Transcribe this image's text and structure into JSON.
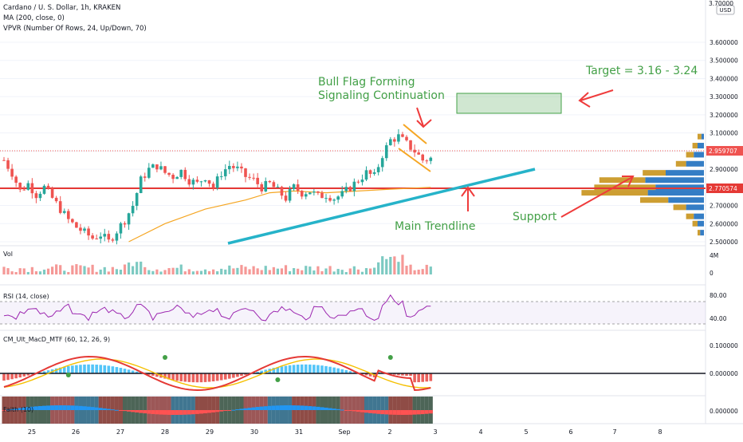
{
  "header": {
    "symbol_line": "Cardano / U. S. Dollar, 1h, KRAKEN",
    "ma_line": "MA (200, close, 0)",
    "vpvr_line": "VPVR (Number Of Rows, 24, Up/Down, 70)"
  },
  "annotations": {
    "bull_flag_line1": "Bull Flag Forming",
    "bull_flag_line2": "Signaling Continuation",
    "target": "Target = 3.16 - 3.24",
    "support": "Support",
    "main_trendline": "Main Trendline"
  },
  "price_axis": {
    "currency": "USD",
    "ticks": [
      "3.600000",
      "3.500000",
      "3.400000",
      "3.300000",
      "3.200000",
      "3.100000",
      "3.000000",
      "2.900000",
      "2.800000",
      "2.700000",
      "2.600000",
      "2.500000"
    ],
    "top_partial": "3.70000",
    "last_price": "2.959707",
    "support_price": "2.770574"
  },
  "time_axis": {
    "labels": [
      "25",
      "26",
      "27",
      "28",
      "29",
      "30",
      "31",
      "Sep",
      "2",
      "3",
      "4",
      "5",
      "6",
      "7",
      "8"
    ]
  },
  "panes": {
    "volume": {
      "label": "Vol",
      "ticks": [
        "4M",
        "0"
      ]
    },
    "rsi": {
      "label": "RSI (14, close)",
      "ticks": [
        "80.00",
        "40.00"
      ]
    },
    "macd": {
      "label": "CM_Ult_MacD_MTF (60, 12, 26, 9)",
      "ticks": [
        "0.100000",
        "0.000000"
      ]
    },
    "faith": {
      "label": "Faith (10)",
      "ticks": [
        "0.000000"
      ]
    }
  },
  "colors": {
    "up": "#26a69a",
    "down": "#ef5350",
    "ma": "#f5a623",
    "trendline": "#26b3c9",
    "support_line": "#e53935",
    "annotation_green": "#43a047",
    "arrow_red": "#ef3b3b",
    "vpvr_up": "#1e6fbf",
    "vpvr_down": "#c8941c",
    "target_box": "#43a047"
  },
  "chart_data": {
    "type": "candlestick",
    "title": "Cardano / U. S. Dollar, 1h, KRAKEN",
    "x_labels": [
      "25",
      "26",
      "27",
      "28",
      "29",
      "30",
      "31",
      "Sep",
      "2",
      "3",
      "4",
      "5",
      "6",
      "7",
      "8"
    ],
    "ylim": [
      2.5,
      3.7
    ],
    "last_price": 2.959707,
    "support_price": 2.770574,
    "target_range": [
      3.16,
      3.24
    ],
    "price_path": [
      [
        0,
        2.95
      ],
      [
        2,
        2.88
      ],
      [
        4,
        2.78
      ],
      [
        6,
        2.82
      ],
      [
        8,
        2.76
      ],
      [
        10,
        2.8
      ],
      [
        12,
        2.74
      ],
      [
        14,
        2.68
      ],
      [
        16,
        2.62
      ],
      [
        18,
        2.58
      ],
      [
        20,
        2.55
      ],
      [
        22,
        2.52
      ],
      [
        24,
        2.54
      ],
      [
        26,
        2.5
      ],
      [
        28,
        2.56
      ],
      [
        30,
        2.62
      ],
      [
        32,
        2.7
      ],
      [
        34,
        2.84
      ],
      [
        36,
        2.9
      ],
      [
        38,
        2.92
      ],
      [
        40,
        2.88
      ],
      [
        42,
        2.86
      ],
      [
        44,
        2.89
      ],
      [
        46,
        2.84
      ],
      [
        48,
        2.82
      ],
      [
        50,
        2.86
      ],
      [
        52,
        2.8
      ],
      [
        54,
        2.88
      ],
      [
        56,
        2.92
      ],
      [
        58,
        2.9
      ],
      [
        60,
        2.86
      ],
      [
        62,
        2.84
      ],
      [
        64,
        2.8
      ],
      [
        66,
        2.82
      ],
      [
        68,
        2.78
      ],
      [
        70,
        2.74
      ],
      [
        72,
        2.8
      ],
      [
        74,
        2.77
      ],
      [
        76,
        2.78
      ],
      [
        78,
        2.75
      ],
      [
        80,
        2.76
      ],
      [
        82,
        2.74
      ],
      [
        84,
        2.76
      ],
      [
        86,
        2.8
      ],
      [
        88,
        2.84
      ],
      [
        90,
        2.88
      ],
      [
        92,
        2.86
      ],
      [
        94,
        2.98
      ],
      [
        96,
        3.06
      ],
      [
        98,
        3.08
      ],
      [
        100,
        3.04
      ],
      [
        102,
        3.0
      ],
      [
        104,
        2.95
      ],
      [
        106,
        2.96
      ]
    ],
    "ma_200_path": [
      [
        31,
        2.5
      ],
      [
        40,
        2.6
      ],
      [
        50,
        2.68
      ],
      [
        60,
        2.73
      ],
      [
        66,
        2.77
      ],
      [
        72,
        2.78
      ],
      [
        80,
        2.77
      ],
      [
        88,
        2.78
      ],
      [
        96,
        2.79
      ],
      [
        106,
        2.8
      ]
    ],
    "flag_upper": [
      [
        100,
        3.08
      ],
      [
        106,
        3.0
      ]
    ],
    "flag_lower": [
      [
        100,
        2.99
      ],
      [
        106,
        2.89
      ]
    ],
    "main_trendline": [
      [
        51,
        2.48
      ],
      [
        134,
        2.87
      ]
    ],
    "vpvr_rows": [
      {
        "price": 3.08,
        "up": 0.02,
        "down": 0.03
      },
      {
        "price": 3.03,
        "up": 0.05,
        "down": 0.04
      },
      {
        "price": 2.98,
        "up": 0.08,
        "down": 0.06
      },
      {
        "price": 2.93,
        "up": 0.14,
        "down": 0.08
      },
      {
        "price": 2.88,
        "up": 0.3,
        "down": 0.18
      },
      {
        "price": 2.84,
        "up": 0.46,
        "down": 0.36
      },
      {
        "price": 2.8,
        "up": 0.38,
        "down": 0.48
      },
      {
        "price": 2.77,
        "up": 0.44,
        "down": 0.52
      },
      {
        "price": 2.73,
        "up": 0.28,
        "down": 0.22
      },
      {
        "price": 2.69,
        "up": 0.14,
        "down": 0.1
      },
      {
        "price": 2.64,
        "up": 0.08,
        "down": 0.06
      },
      {
        "price": 2.6,
        "up": 0.05,
        "down": 0.04
      },
      {
        "price": 2.55,
        "up": 0.03,
        "down": 0.02
      }
    ]
  }
}
